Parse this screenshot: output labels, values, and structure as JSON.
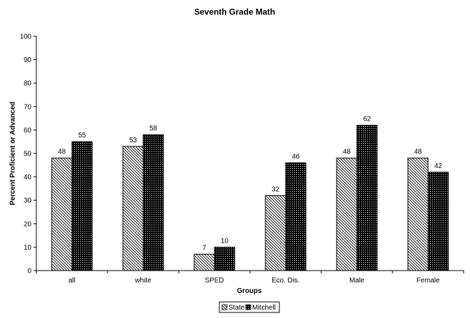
{
  "chart_data": {
    "type": "bar",
    "title": "Seventh Grade Math",
    "xlabel": "Groups",
    "ylabel": "Percent Proficient or Advanced",
    "categories": [
      "all",
      "white",
      "SPED",
      "Eco. Dis.",
      "Male",
      "Female"
    ],
    "series": [
      {
        "name": "State",
        "values": [
          48,
          53,
          7,
          32,
          48,
          48
        ],
        "fill": "diagonal-hatch"
      },
      {
        "name": "Mitchell",
        "values": [
          55,
          58,
          10,
          46,
          62,
          42
        ],
        "fill": "dark-dotted"
      }
    ],
    "ylim": [
      0,
      100
    ],
    "yticks": [
      0,
      10,
      20,
      30,
      40,
      50,
      60,
      70,
      80,
      90,
      100
    ],
    "grid": false,
    "legend_position": "bottom-center",
    "data_labels": true
  }
}
